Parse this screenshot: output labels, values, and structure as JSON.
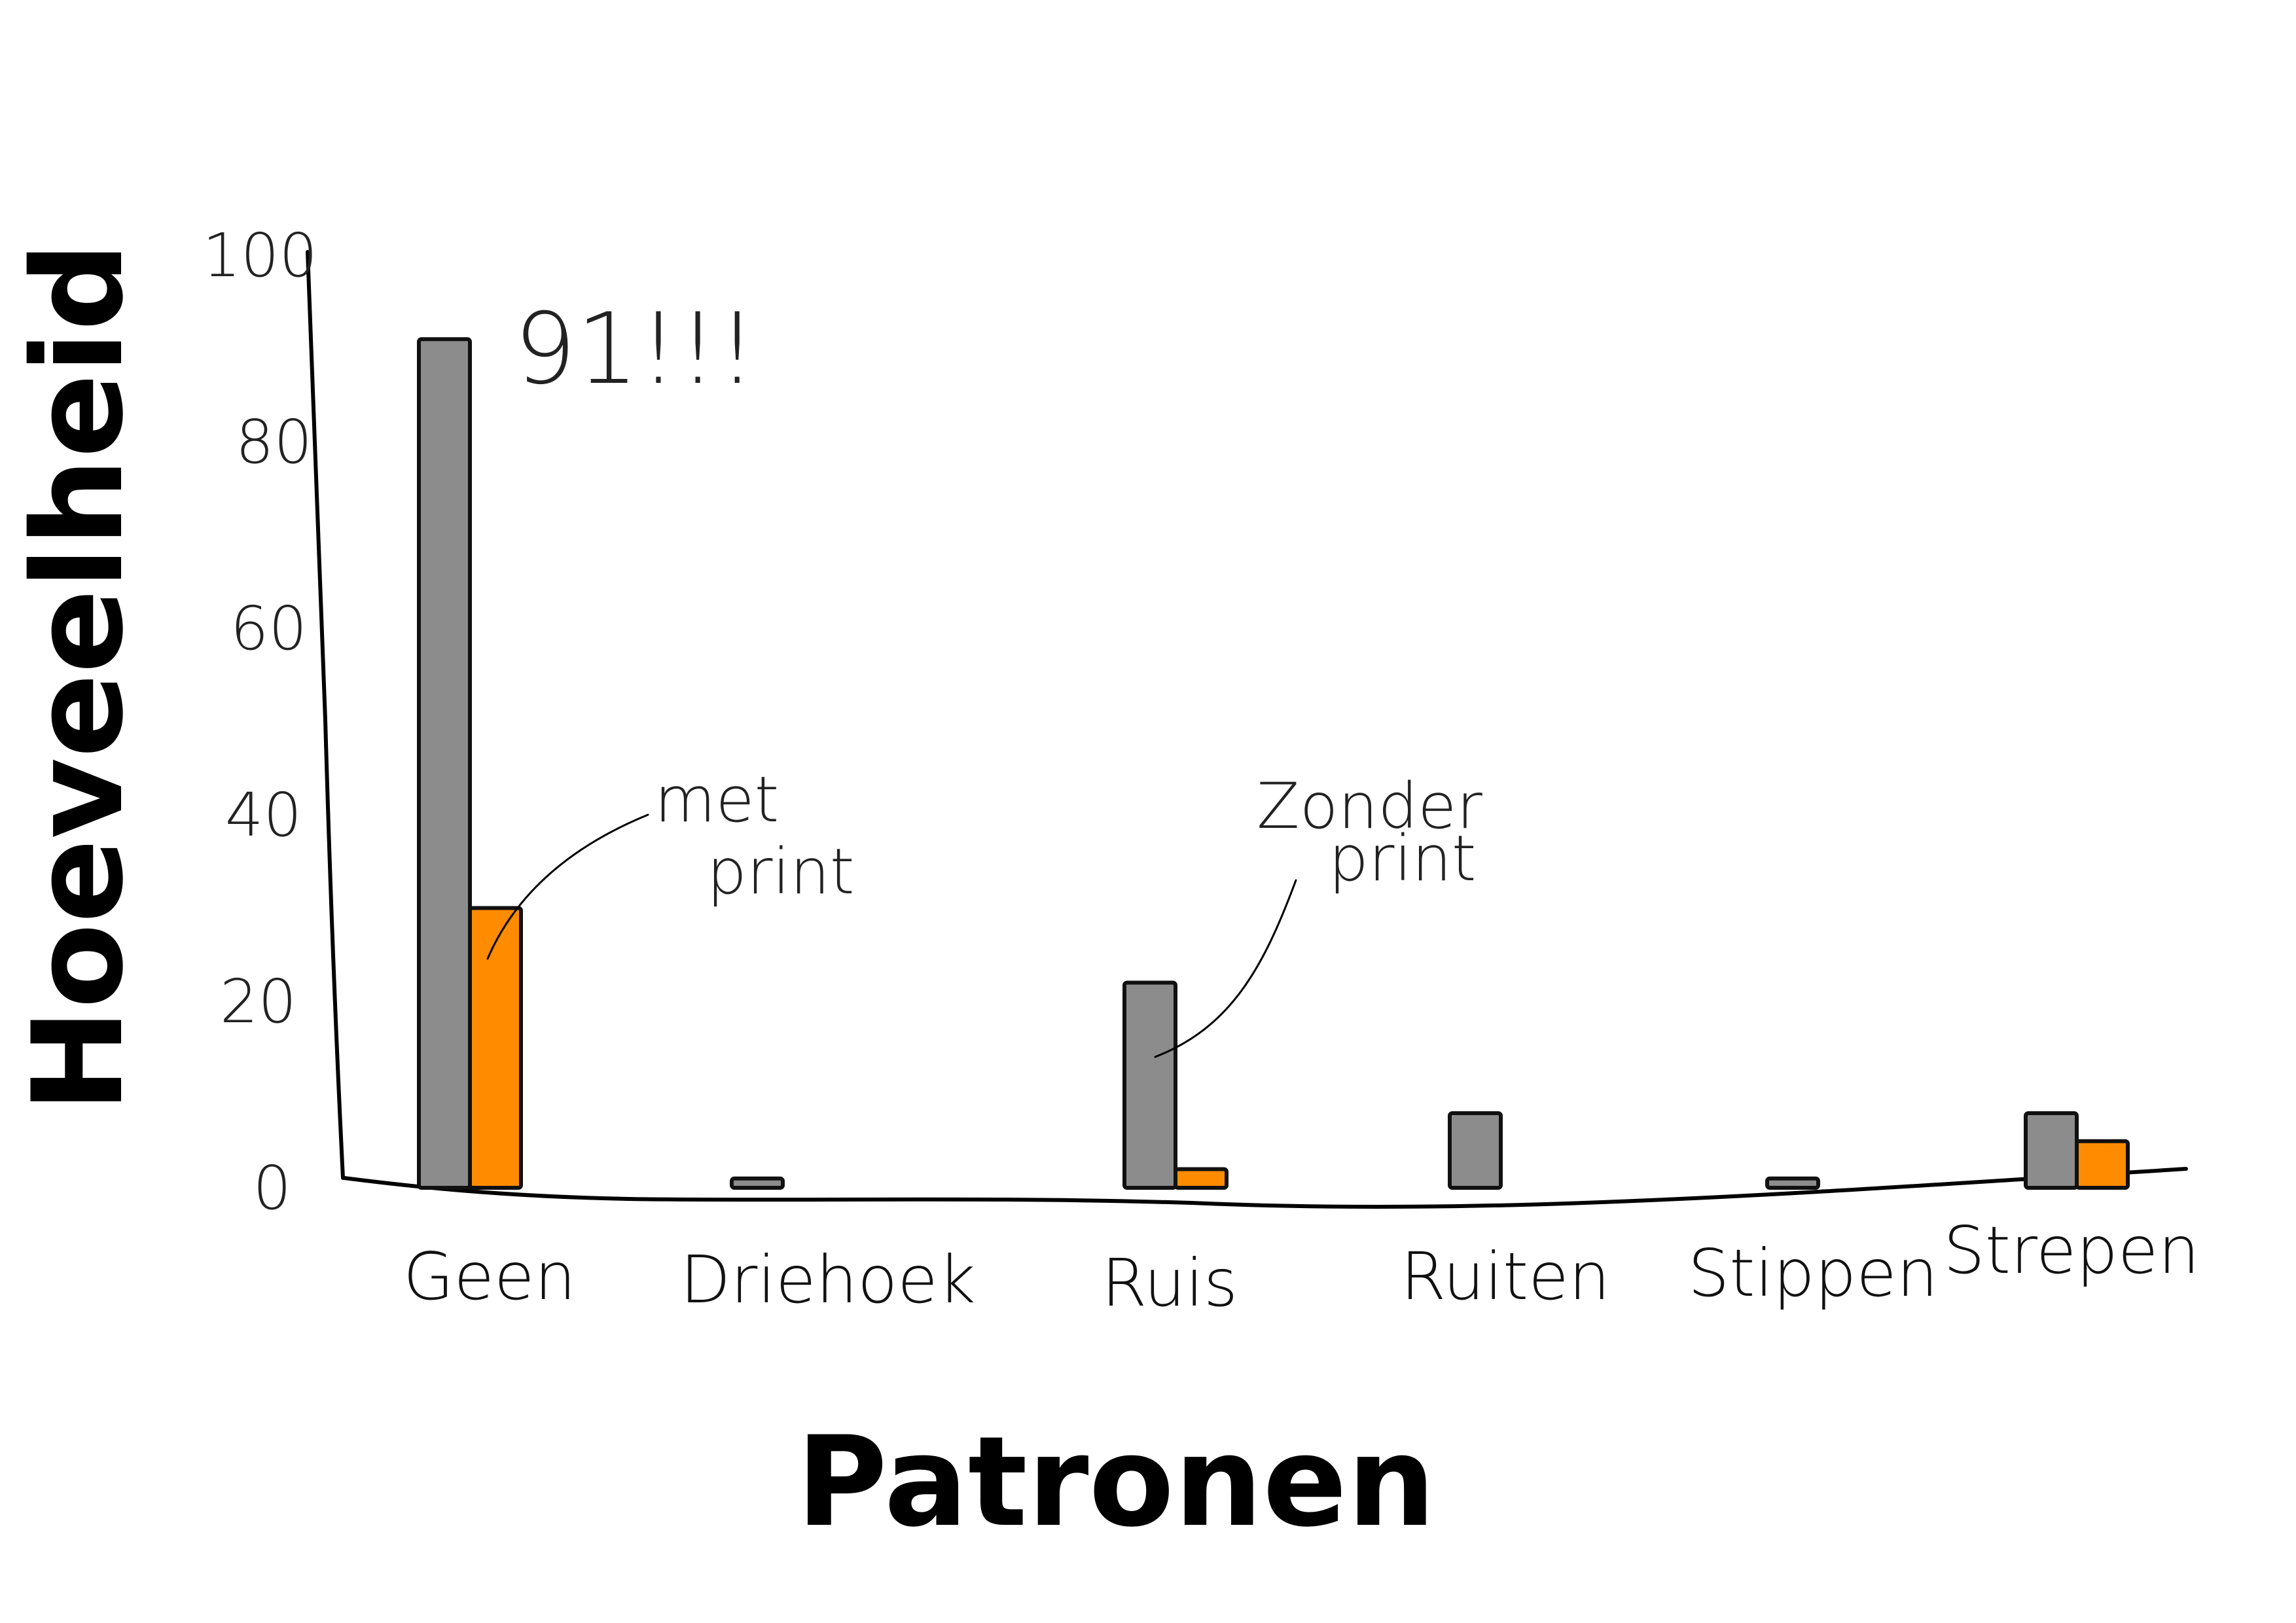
{
  "chart_data": {
    "type": "bar",
    "xlabel": "Patronen",
    "ylabel": "Hoeveelheid",
    "ylim": [
      0,
      100
    ],
    "yticks": [
      "0",
      "20",
      "40",
      "60",
      "80",
      "100"
    ],
    "categories": [
      "Geen",
      "Driehoek",
      "Ruis",
      "Ruiten",
      "Stippen",
      "Strepen"
    ],
    "series": [
      {
        "name": "Zonder print",
        "color": "#8c8c8c",
        "values": [
          91,
          1,
          22,
          8,
          1,
          8
        ]
      },
      {
        "name": "met print",
        "color": "#ff8c00",
        "values": [
          30,
          0,
          2,
          0,
          0,
          5
        ]
      }
    ],
    "annotations": {
      "peak": "91!!!",
      "met_print_line1": "met",
      "met_print_line2": "print",
      "zonder_print_line1": "Zonder",
      "zonder_print_line2": "print"
    },
    "grid": false,
    "legend": "none"
  }
}
